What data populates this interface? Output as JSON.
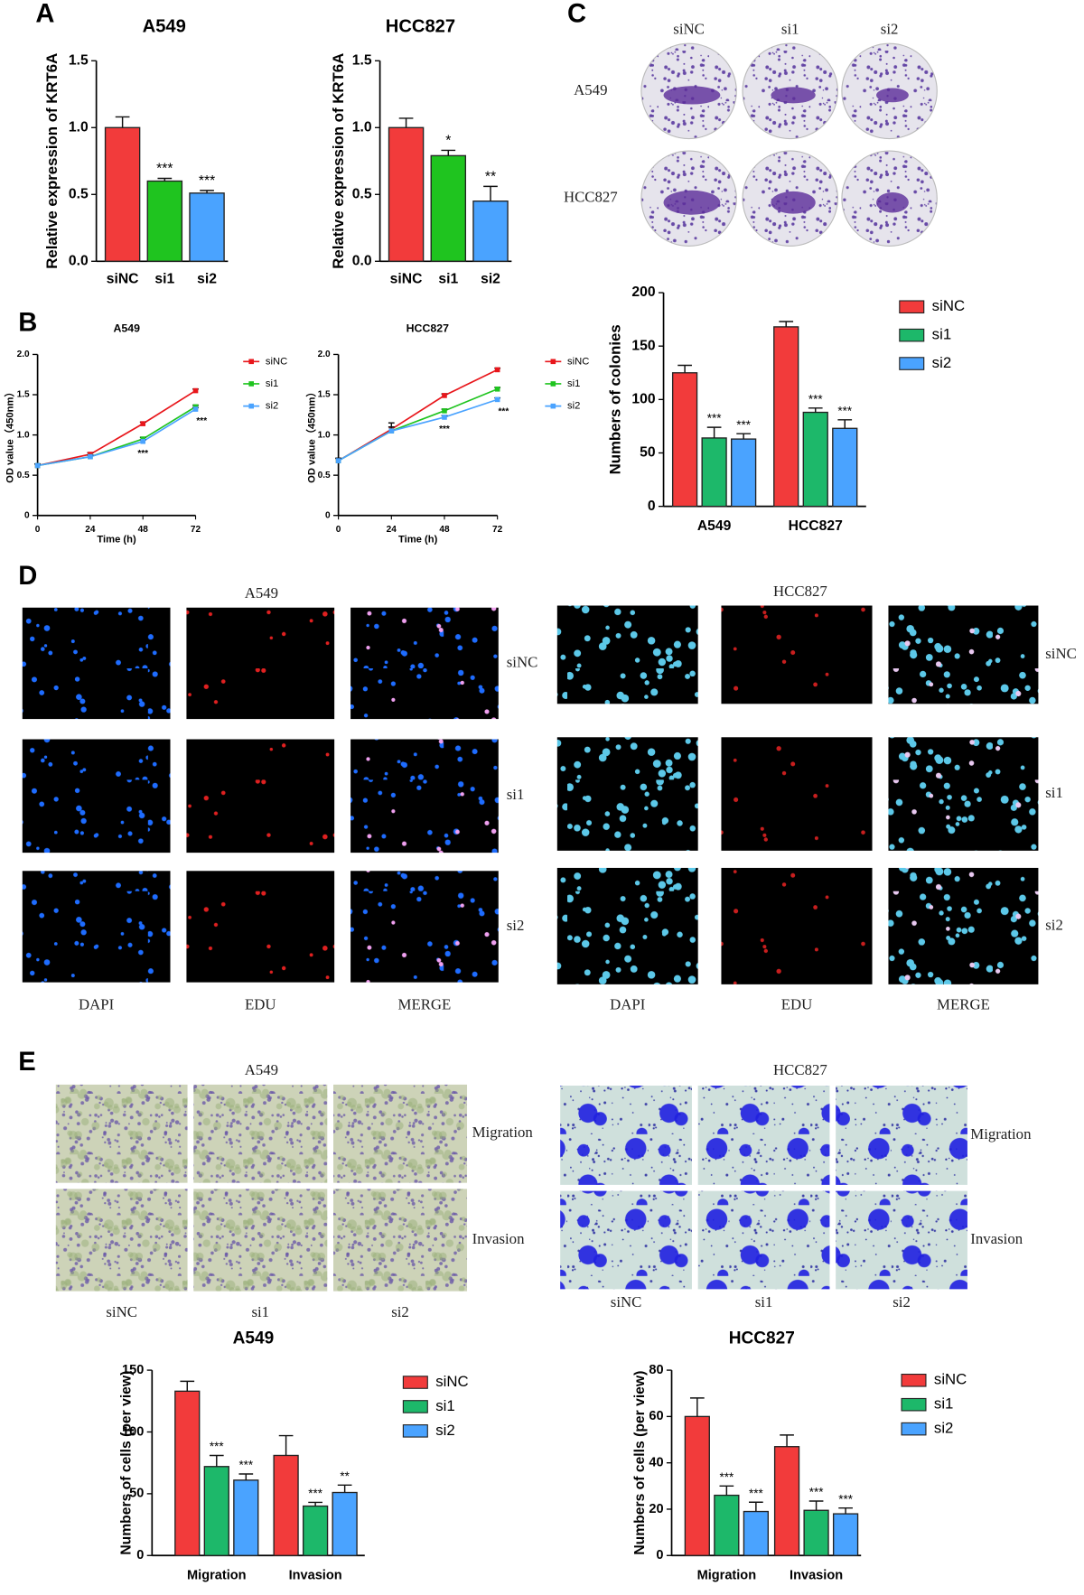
{
  "panels": [
    "A",
    "B",
    "C",
    "D",
    "E"
  ],
  "chart_data": [
    {
      "type": "bar",
      "title": "A549",
      "ylabel": "Relative expression of KRT6A",
      "categories": [
        "siNC",
        "si1",
        "si2"
      ],
      "values": [
        1.0,
        0.6,
        0.51
      ],
      "errors": [
        0.08,
        0.02,
        0.02
      ],
      "significance": [
        null,
        "***",
        "***"
      ],
      "colors": [
        "#f23b3b",
        "#1fc41f",
        "#4aa3ff"
      ],
      "ylim": [
        0,
        1.5
      ],
      "yticks": [
        {
          "value": 0,
          "label": "0.0"
        },
        0.5,
        {
          "value": 1,
          "label": "1.0"
        },
        1.5
      ]
    },
    {
      "type": "bar",
      "title": "HCC827",
      "ylabel": "Relative expression of KRT6A",
      "categories": [
        "siNC",
        "si1",
        "si2"
      ],
      "values": [
        1.0,
        0.79,
        0.45
      ],
      "errors": [
        0.07,
        0.04,
        0.11
      ],
      "significance": [
        null,
        "*",
        "**"
      ],
      "colors": [
        "#f23b3b",
        "#1fc41f",
        "#4aa3ff"
      ],
      "ylim": [
        0,
        1.5
      ],
      "yticks": [
        {
          "value": 0,
          "label": "0.0"
        },
        0.5,
        {
          "value": 1,
          "label": "1.0"
        },
        1.5
      ]
    },
    {
      "type": "line",
      "title": "A549",
      "xlabel": "Time (h)",
      "ylabel": "OD value（450nm）",
      "x": [
        0,
        24,
        48,
        72
      ],
      "xlim": [
        0,
        72
      ],
      "xticks": [
        0,
        24,
        48,
        72
      ],
      "ylim": [
        0,
        2
      ],
      "yticks": [
        0,
        0.5,
        {
          "value": 1,
          "label": "1.0"
        },
        1.5,
        {
          "value": 2,
          "label": "2.0"
        }
      ],
      "series": [
        {
          "name": "siNC",
          "color": "#e8161b",
          "values": [
            0.62,
            0.76,
            1.14,
            1.55
          ],
          "errors": [
            0.02,
            0.02,
            0.02,
            0.02
          ]
        },
        {
          "name": "si1",
          "color": "#1fc41f",
          "values": [
            0.62,
            0.73,
            0.95,
            1.35
          ],
          "errors": [
            0.02,
            0.02,
            0.02,
            0.02
          ]
        },
        {
          "name": "si2",
          "color": "#4aa3ff",
          "values": [
            0.62,
            0.73,
            0.92,
            1.32
          ],
          "errors": [
            0.02,
            0.02,
            0.02,
            0.02
          ]
        }
      ],
      "annotations": [
        {
          "x": 48,
          "text": "***"
        },
        {
          "x": 72,
          "text": "***"
        }
      ]
    },
    {
      "type": "line",
      "title": "HCC827",
      "xlabel": "Time (h)",
      "ylabel": "OD value（450nm）",
      "x": [
        0,
        24,
        48,
        72
      ],
      "xlim": [
        0,
        72
      ],
      "xticks": [
        0,
        24,
        48,
        72
      ],
      "ylim": [
        0,
        2
      ],
      "yticks": [
        0,
        0.5,
        {
          "value": 1,
          "label": "1.0"
        },
        1.5,
        {
          "value": 2,
          "label": "2.0"
        }
      ],
      "series": [
        {
          "name": "siNC",
          "color": "#e8161b",
          "values": [
            0.68,
            1.07,
            1.49,
            1.81
          ],
          "errors": [
            0.03,
            0.08,
            0.02,
            0.02
          ]
        },
        {
          "name": "si1",
          "color": "#1fc41f",
          "values": [
            0.68,
            1.05,
            1.3,
            1.57
          ],
          "errors": [
            0.03,
            0.05,
            0.02,
            0.02
          ]
        },
        {
          "name": "si2",
          "color": "#4aa3ff",
          "values": [
            0.68,
            1.05,
            1.22,
            1.44
          ],
          "errors": [
            0.03,
            0.05,
            0.02,
            0.02
          ]
        }
      ],
      "annotations": [
        {
          "x": 48,
          "text": "***"
        },
        {
          "x": 72,
          "text": "***"
        }
      ]
    },
    {
      "type": "grouped_bar",
      "ylabel": "Numbers of colonies",
      "categories": [
        "A549",
        "HCC827"
      ],
      "ylim": [
        0,
        200
      ],
      "yticks": [
        0,
        50,
        100,
        150,
        200
      ],
      "series": [
        {
          "name": "siNC",
          "color": "#f23b3b",
          "values": [
            125,
            168
          ],
          "errors": [
            7,
            5
          ],
          "significance": [
            null,
            null
          ]
        },
        {
          "name": "si1",
          "color": "#1db86a",
          "values": [
            64,
            88
          ],
          "errors": [
            10,
            4
          ],
          "significance": [
            "***",
            "***"
          ]
        },
        {
          "name": "si2",
          "color": "#4aa3ff",
          "values": [
            63,
            73
          ],
          "errors": [
            5,
            8
          ],
          "significance": [
            "***",
            "***"
          ]
        }
      ]
    },
    {
      "type": "grouped_bar",
      "title": "A549",
      "ylabel": "Numbers of cells (per view)",
      "categories": [
        "Migration",
        "Invasion"
      ],
      "ylim": [
        0,
        150
      ],
      "yticks": [
        0,
        50,
        100,
        150
      ],
      "series": [
        {
          "name": "siNC",
          "color": "#f23b3b",
          "values": [
            133,
            81
          ],
          "errors": [
            8,
            16
          ],
          "significance": [
            null,
            null
          ]
        },
        {
          "name": "si1",
          "color": "#1db86a",
          "values": [
            72,
            40
          ],
          "errors": [
            9,
            3
          ],
          "significance": [
            "***",
            "***"
          ]
        },
        {
          "name": "si2",
          "color": "#4aa3ff",
          "values": [
            61,
            51
          ],
          "errors": [
            5,
            6
          ],
          "significance": [
            "***",
            "**"
          ]
        }
      ]
    },
    {
      "type": "grouped_bar",
      "title": "HCC827",
      "ylabel": "Numbers of cells (per view)",
      "categories": [
        "Migration",
        "Invasion"
      ],
      "ylim": [
        0,
        80
      ],
      "yticks": [
        0,
        20,
        40,
        60,
        80
      ],
      "series": [
        {
          "name": "siNC",
          "color": "#f23b3b",
          "values": [
            60,
            47
          ],
          "errors": [
            8,
            5
          ],
          "significance": [
            null,
            null
          ]
        },
        {
          "name": "si1",
          "color": "#1db86a",
          "values": [
            26,
            19.5
          ],
          "errors": [
            4,
            4
          ],
          "significance": [
            "***",
            "***"
          ]
        },
        {
          "name": "si2",
          "color": "#4aa3ff",
          "values": [
            19,
            18
          ],
          "errors": [
            4,
            2.5
          ],
          "significance": [
            "***",
            "***"
          ]
        }
      ]
    }
  ],
  "images": [
    {
      "columns": [
        "siNC",
        "si1",
        "si2"
      ],
      "rows": [
        "A549",
        "HCC827"
      ]
    },
    {
      "title": "A549",
      "columns": [
        "DAPI",
        "EDU",
        "MERGE"
      ],
      "rows": [
        "siNC",
        "si1",
        "si2"
      ]
    },
    {
      "title": "HCC827",
      "columns": [
        "DAPI",
        "EDU",
        "MERGE"
      ],
      "rows": [
        "siNC",
        "si1",
        "si2"
      ]
    },
    {
      "title": "A549",
      "columns": [
        "siNC",
        "si1",
        "si2"
      ],
      "rows": [
        "Migration",
        "Invasion"
      ]
    },
    {
      "title": "HCC827",
      "columns": [
        "siNC",
        "si1",
        "si2"
      ],
      "rows": [
        "Migration",
        "Invasion"
      ]
    }
  ]
}
